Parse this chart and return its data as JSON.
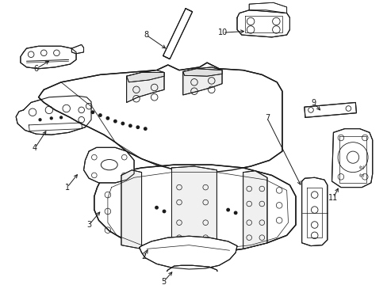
{
  "background_color": "#ffffff",
  "line_color": "#1a1a1a",
  "figure_width": 4.89,
  "figure_height": 3.6,
  "dpi": 100,
  "label_positions": {
    "1": [
      0.155,
      0.415,
      0.185,
      0.455
    ],
    "2": [
      0.365,
      0.088,
      0.385,
      0.175
    ],
    "3": [
      0.215,
      0.31,
      0.24,
      0.345
    ],
    "4": [
      0.068,
      0.4,
      0.1,
      0.44
    ],
    "5": [
      0.415,
      0.06,
      0.435,
      0.138
    ],
    "6": [
      0.072,
      0.748,
      0.095,
      0.79
    ],
    "7": [
      0.698,
      0.155,
      0.71,
      0.23
    ],
    "8": [
      0.37,
      0.93,
      0.405,
      0.9
    ],
    "9": [
      0.828,
      0.598,
      0.795,
      0.618
    ],
    "10": [
      0.575,
      0.93,
      0.615,
      0.905
    ],
    "11": [
      0.878,
      0.268,
      0.862,
      0.34
    ]
  }
}
